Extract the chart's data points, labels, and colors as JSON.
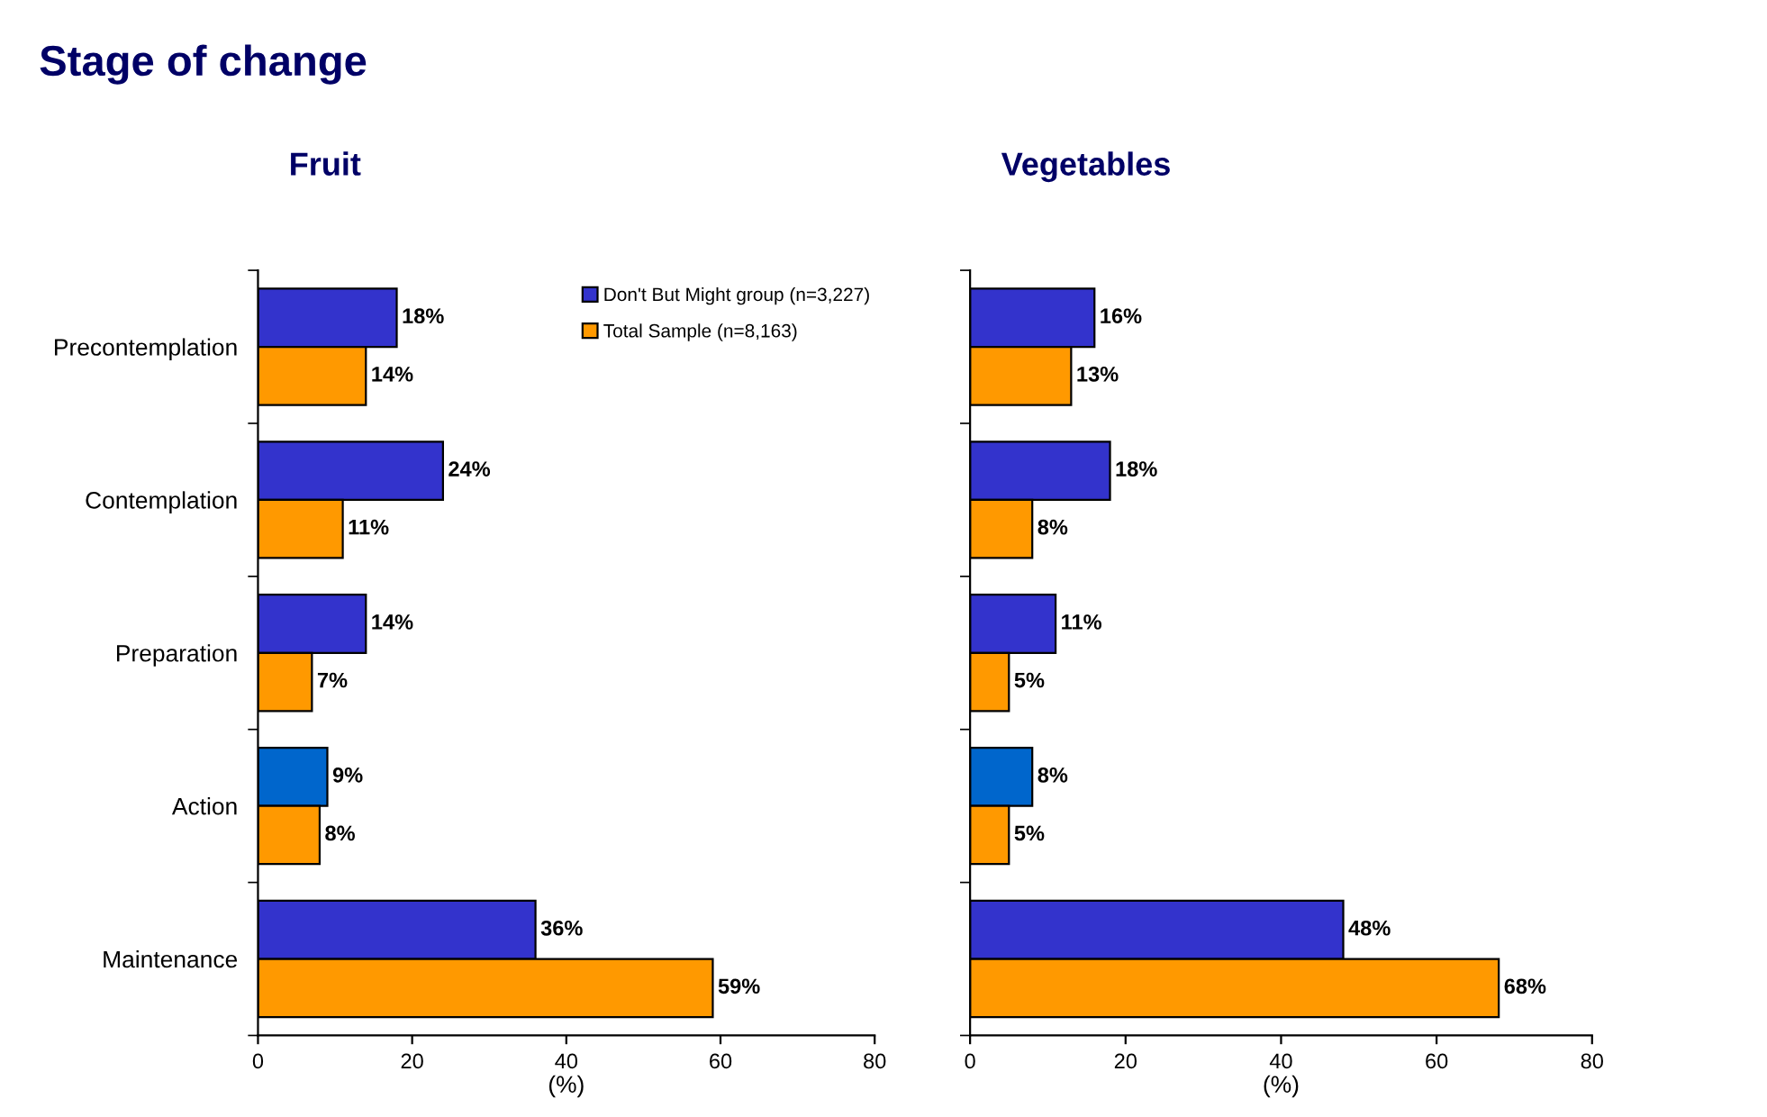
{
  "chart_data": [
    {
      "type": "bar",
      "orientation": "horizontal",
      "title": "Fruit",
      "xlabel": "(%)",
      "annotations": [
        "Stage of change"
      ],
      "categories": [
        "Precontemplation",
        "Contemplation",
        "Preparation",
        "Action",
        "Maintenance"
      ],
      "series": [
        {
          "name": "Don't But Might group (n=3,227)",
          "color": "#3333cc",
          "colors": [
            "#3333cc",
            "#3333cc",
            "#3333cc",
            "#0066cc",
            "#3333cc"
          ],
          "values": [
            18,
            24,
            14,
            9,
            36
          ],
          "value_labels": [
            "18%",
            "24%",
            "14%",
            "9%",
            "36%"
          ]
        },
        {
          "name": "Total Sample (n=8,163)",
          "color": "#ff9900",
          "values": [
            14,
            11,
            7,
            8,
            59
          ],
          "value_labels": [
            "14%",
            "11%",
            "7%",
            "8%",
            "59%"
          ]
        }
      ],
      "xlim": [
        0,
        80
      ],
      "xticks": [
        0,
        20,
        40,
        60,
        80
      ],
      "grid": false,
      "legend": "top right"
    },
    {
      "type": "bar",
      "orientation": "horizontal",
      "title": "Vegetables",
      "xlabel": "(%)",
      "categories": [
        null,
        null,
        null,
        null,
        null
      ],
      "series": [
        {
          "colors": [
            "#3333cc",
            "#3333cc",
            "#3333cc",
            "#0066cc",
            "#3333cc"
          ],
          "values": [
            16,
            18,
            11,
            8,
            48
          ],
          "value_labels": [
            "16%",
            "18%",
            "11%",
            "8%",
            "48%"
          ]
        },
        {
          "color": "#ff9900",
          "values": [
            13,
            8,
            5,
            5,
            68
          ],
          "value_labels": [
            "13%",
            "8%",
            "5%",
            "5%",
            "68%"
          ]
        }
      ],
      "xlim": [
        0,
        80
      ],
      "xticks": [
        0,
        20,
        40,
        60,
        80
      ],
      "grid": false,
      "legend": false,
      "tick_labels": "x"
    }
  ]
}
